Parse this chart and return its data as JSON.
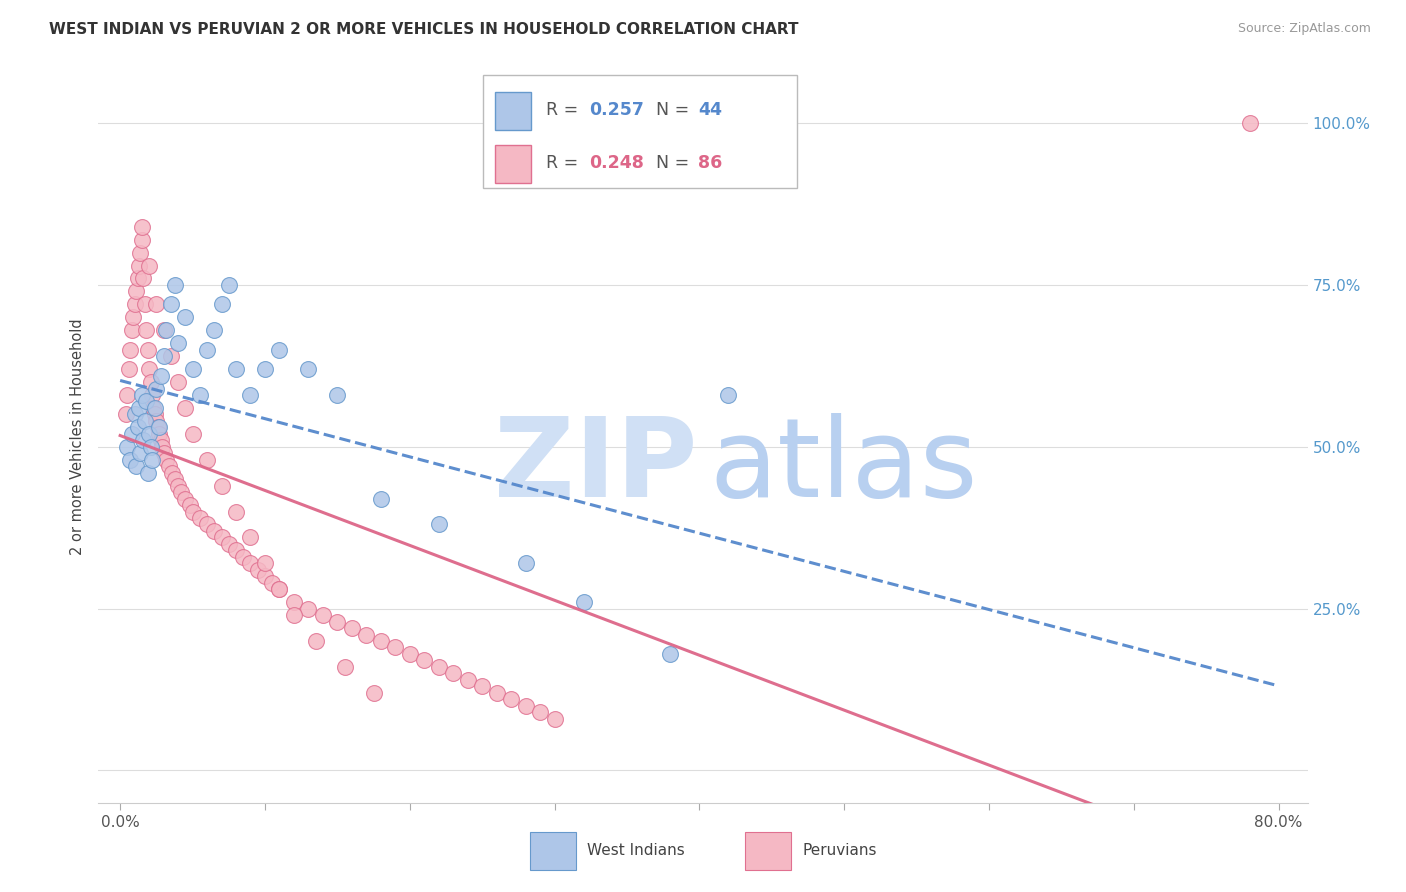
{
  "title": "WEST INDIAN VS PERUVIAN 2 OR MORE VEHICLES IN HOUSEHOLD CORRELATION CHART",
  "source": "Source: ZipAtlas.com",
  "ylabel": "2 or more Vehicles in Household",
  "xlim": [
    0.0,
    80.0
  ],
  "ylim": [
    0.0,
    100.0
  ],
  "legend_r1": "R = 0.257",
  "legend_n1": "N = 44",
  "legend_r2": "R = 0.248",
  "legend_n2": "N = 86",
  "wi_color_fill": "#aec6e8",
  "wi_color_edge": "#6699cc",
  "pe_color_fill": "#f5b8c4",
  "pe_color_edge": "#e07090",
  "wi_line_color": "#5588cc",
  "pe_line_color": "#dd6688",
  "watermark_zip_color": "#d0e0f5",
  "watermark_atlas_color": "#b8d0f0",
  "background_color": "#ffffff",
  "right_tick_color": "#5599cc",
  "wi_x": [
    0.5,
    0.7,
    0.8,
    1.0,
    1.1,
    1.2,
    1.3,
    1.4,
    1.5,
    1.6,
    1.7,
    1.8,
    1.9,
    2.0,
    2.1,
    2.2,
    2.4,
    2.5,
    2.7,
    2.8,
    3.0,
    3.2,
    3.5,
    3.8,
    4.0,
    4.5,
    5.0,
    5.5,
    6.0,
    6.5,
    7.0,
    7.5,
    8.0,
    9.0,
    10.0,
    11.0,
    13.0,
    15.0,
    18.0,
    22.0,
    28.0,
    32.0,
    38.0,
    42.0
  ],
  "wi_y": [
    50,
    48,
    52,
    55,
    47,
    53,
    56,
    49,
    58,
    51,
    54,
    57,
    46,
    52,
    50,
    48,
    56,
    59,
    53,
    61,
    64,
    68,
    72,
    75,
    66,
    70,
    62,
    58,
    65,
    68,
    72,
    75,
    62,
    58,
    62,
    65,
    62,
    58,
    42,
    38,
    32,
    26,
    18,
    58
  ],
  "pe_x": [
    0.4,
    0.5,
    0.6,
    0.7,
    0.8,
    0.9,
    1.0,
    1.1,
    1.2,
    1.3,
    1.4,
    1.5,
    1.6,
    1.7,
    1.8,
    1.9,
    2.0,
    2.1,
    2.2,
    2.3,
    2.4,
    2.5,
    2.6,
    2.7,
    2.8,
    2.9,
    3.0,
    3.2,
    3.4,
    3.6,
    3.8,
    4.0,
    4.2,
    4.5,
    4.8,
    5.0,
    5.5,
    6.0,
    6.5,
    7.0,
    7.5,
    8.0,
    8.5,
    9.0,
    9.5,
    10.0,
    10.5,
    11.0,
    12.0,
    13.0,
    14.0,
    15.0,
    16.0,
    17.0,
    18.0,
    19.0,
    20.0,
    21.0,
    22.0,
    23.0,
    24.0,
    25.0,
    26.0,
    27.0,
    28.0,
    29.0,
    30.0,
    1.5,
    2.0,
    2.5,
    3.0,
    3.5,
    4.0,
    4.5,
    5.0,
    6.0,
    7.0,
    8.0,
    9.0,
    10.0,
    11.0,
    12.0,
    13.5,
    15.5,
    17.5,
    78.0
  ],
  "pe_y": [
    55,
    58,
    62,
    65,
    68,
    70,
    72,
    74,
    76,
    78,
    80,
    82,
    76,
    72,
    68,
    65,
    62,
    60,
    58,
    56,
    55,
    54,
    53,
    52,
    51,
    50,
    49,
    48,
    47,
    46,
    45,
    44,
    43,
    42,
    41,
    40,
    39,
    38,
    37,
    36,
    35,
    34,
    33,
    32,
    31,
    30,
    29,
    28,
    26,
    25,
    24,
    23,
    22,
    21,
    20,
    19,
    18,
    17,
    16,
    15,
    14,
    13,
    12,
    11,
    10,
    9,
    8,
    84,
    78,
    72,
    68,
    64,
    60,
    56,
    52,
    48,
    44,
    40,
    36,
    32,
    28,
    24,
    20,
    16,
    12,
    100
  ]
}
